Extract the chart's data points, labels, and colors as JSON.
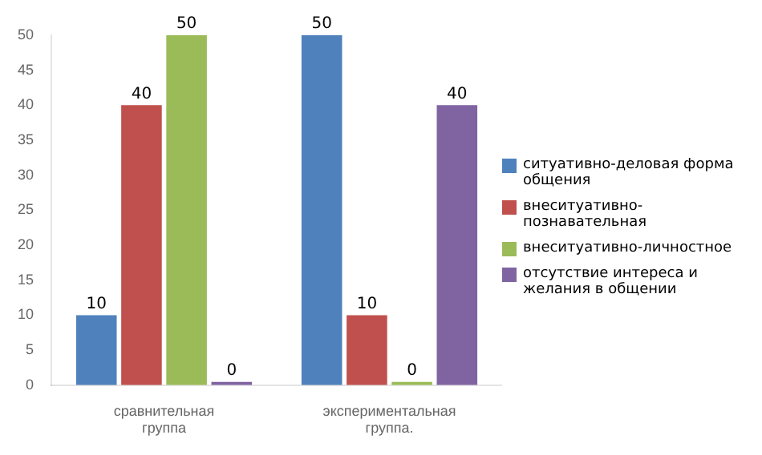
{
  "chart_data": {
    "type": "bar",
    "categories": [
      "сравнительная группа",
      "экспериментальная группа."
    ],
    "series": [
      {
        "name": "ситуативно-деловая форма общения",
        "color": "#4f81bd",
        "values": [
          10,
          50
        ]
      },
      {
        "name": "внеситуативно-познавательная",
        "color": "#c0504d",
        "values": [
          40,
          10
        ]
      },
      {
        "name": "внеситуативно-личностное",
        "color": "#9bbb59",
        "values": [
          50,
          0
        ]
      },
      {
        "name": "отсутствие интереса и желания в общении",
        "color": "#8064a2",
        "values": [
          0,
          40
        ]
      }
    ],
    "ylim": [
      0,
      50
    ],
    "yticks": [
      0,
      5,
      10,
      15,
      20,
      25,
      30,
      35,
      40,
      45,
      50
    ],
    "grid": false,
    "legend": "right",
    "data_labels": true
  }
}
